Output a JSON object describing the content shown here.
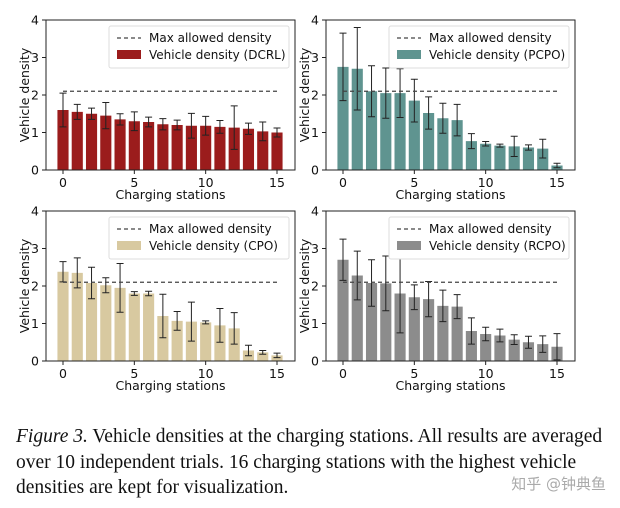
{
  "chart_data": [
    {
      "type": "bar",
      "xlabel": "Charging stations",
      "ylabel": "Vehicle density",
      "ylim": [
        0,
        4
      ],
      "xticks": [
        0,
        5,
        10,
        15
      ],
      "yticks": [
        0,
        1,
        2,
        3,
        4
      ],
      "legend": "top-right",
      "threshold": {
        "name": "Max allowed density",
        "value": 2.1
      },
      "series": [
        {
          "name": "Vehicle density (DCRL)",
          "color": "#9b1c1c",
          "x": [
            0,
            1,
            2,
            3,
            4,
            5,
            6,
            7,
            8,
            9,
            10,
            11,
            12,
            13,
            14,
            15
          ],
          "values": [
            1.6,
            1.55,
            1.5,
            1.45,
            1.35,
            1.3,
            1.28,
            1.22,
            1.2,
            1.18,
            1.18,
            1.15,
            1.13,
            1.1,
            1.03,
            1.0
          ],
          "errors": [
            0.45,
            0.2,
            0.15,
            0.35,
            0.15,
            0.25,
            0.13,
            0.15,
            0.13,
            0.33,
            0.25,
            0.17,
            0.58,
            0.15,
            0.25,
            0.12
          ]
        }
      ]
    },
    {
      "type": "bar",
      "xlabel": "Charging stations",
      "ylabel": "Vehicle density",
      "ylim": [
        0,
        4
      ],
      "xticks": [
        0,
        5,
        10,
        15
      ],
      "yticks": [
        0,
        1,
        2,
        3,
        4
      ],
      "legend": "top-right",
      "threshold": {
        "name": "Max allowed density",
        "value": 2.1
      },
      "series": [
        {
          "name": "Vehicle density (PCPO)",
          "color": "#5f9490",
          "x": [
            0,
            1,
            2,
            3,
            4,
            5,
            6,
            7,
            8,
            9,
            10,
            11,
            12,
            13,
            14,
            15
          ],
          "values": [
            2.75,
            2.7,
            2.1,
            2.05,
            2.05,
            1.85,
            1.52,
            1.38,
            1.33,
            0.77,
            0.7,
            0.65,
            0.63,
            0.6,
            0.57,
            0.12
          ],
          "errors": [
            0.9,
            1.1,
            0.68,
            0.67,
            0.65,
            0.57,
            0.43,
            0.4,
            0.42,
            0.2,
            0.06,
            0.04,
            0.27,
            0.07,
            0.25,
            0.06
          ]
        }
      ]
    },
    {
      "type": "bar",
      "xlabel": "Charging stations",
      "ylabel": "Vehicle density",
      "ylim": [
        0,
        4
      ],
      "xticks": [
        0,
        5,
        10,
        15
      ],
      "yticks": [
        0,
        1,
        2,
        3,
        4
      ],
      "legend": "top-right",
      "threshold": {
        "name": "Max allowed density",
        "value": 2.1
      },
      "series": [
        {
          "name": "Vehicle density (CPO)",
          "color": "#d8c9a0",
          "x": [
            0,
            1,
            2,
            3,
            4,
            5,
            6,
            7,
            8,
            9,
            10,
            11,
            12,
            13,
            14,
            15
          ],
          "values": [
            2.38,
            2.35,
            2.08,
            2.02,
            1.95,
            1.8,
            1.8,
            1.2,
            1.07,
            1.05,
            1.03,
            0.95,
            0.87,
            0.28,
            0.23,
            0.15
          ],
          "errors": [
            0.27,
            0.4,
            0.42,
            0.2,
            0.65,
            0.05,
            0.06,
            0.58,
            0.25,
            0.52,
            0.04,
            0.45,
            0.42,
            0.14,
            0.05,
            0.06
          ]
        }
      ]
    },
    {
      "type": "bar",
      "xlabel": "Charging stations",
      "ylabel": "Vehicle density",
      "ylim": [
        0,
        4
      ],
      "xticks": [
        0,
        5,
        10,
        15
      ],
      "yticks": [
        0,
        1,
        2,
        3,
        4
      ],
      "legend": "top-right",
      "threshold": {
        "name": "Max allowed density",
        "value": 2.1
      },
      "series": [
        {
          "name": "Vehicle density (RCPO)",
          "color": "#8c8c8c",
          "x": [
            0,
            1,
            2,
            3,
            4,
            5,
            6,
            7,
            8,
            9,
            10,
            11,
            12,
            13,
            14,
            15
          ],
          "values": [
            2.7,
            2.28,
            2.08,
            2.07,
            1.8,
            1.7,
            1.65,
            1.47,
            1.45,
            0.8,
            0.72,
            0.68,
            0.57,
            0.5,
            0.45,
            0.38
          ],
          "errors": [
            0.55,
            0.65,
            0.62,
            0.73,
            1.05,
            0.33,
            0.47,
            0.42,
            0.32,
            0.35,
            0.18,
            0.17,
            0.13,
            0.16,
            0.22,
            0.35
          ]
        }
      ]
    }
  ],
  "caption": {
    "label": "Figure 3.",
    "text": " Vehicle densities at the charging stations. All results are averaged over 10 independent trials. 16 charging stations with the highest vehicle densities are kept for visualization."
  },
  "watermark": "知乎 @钟典鱼"
}
